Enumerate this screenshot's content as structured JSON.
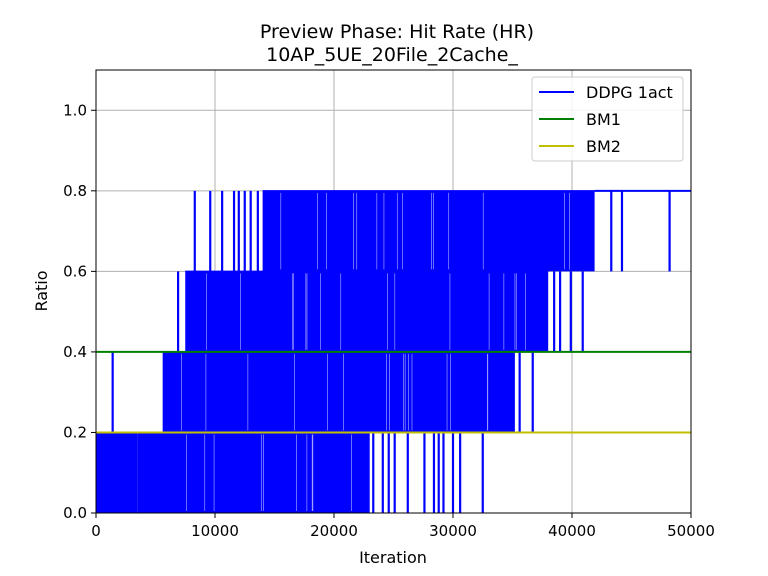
{
  "chart_data": {
    "type": "line",
    "title": "Preview Phase: Hit Rate (HR)",
    "subtitle": "10AP_5UE_20File_2Cache_",
    "xlabel": "Iteration",
    "ylabel": "Ratio",
    "xlim": [
      0,
      50000
    ],
    "ylim": [
      0,
      1.1
    ],
    "xticks": [
      0,
      10000,
      20000,
      30000,
      40000,
      50000
    ],
    "xtick_labels": [
      "0",
      "10000",
      "20000",
      "30000",
      "40000",
      "50000"
    ],
    "yticks": [
      0.0,
      0.2,
      0.4,
      0.6,
      0.8,
      1.0
    ],
    "ytick_labels": [
      "0.0",
      "0.2",
      "0.4",
      "0.6",
      "0.8",
      "1.0"
    ],
    "grid": true,
    "legend_position": "top-right",
    "series": [
      {
        "name": "DDPG 1act",
        "color": "#0000ff",
        "style": "oscillating",
        "bands": [
          {
            "x": [
              0,
              3500
            ],
            "low": 0.0,
            "high": 0.2
          },
          {
            "x": [
              3500,
              23000
            ],
            "low": 0.0,
            "high": 0.2
          },
          {
            "x": [
              5600,
              35200
            ],
            "low": 0.2,
            "high": 0.4
          },
          {
            "x": [
              7500,
              38000
            ],
            "low": 0.4,
            "high": 0.6
          },
          {
            "x": [
              14000,
              41900
            ],
            "low": 0.6,
            "high": 0.8
          }
        ],
        "spikes": [
          {
            "x": 1400,
            "low": 0.2,
            "high": 0.4
          },
          {
            "x": 6900,
            "low": 0.4,
            "high": 0.6
          },
          {
            "x": 8300,
            "low": 0.6,
            "high": 0.8
          },
          {
            "x": 9600,
            "low": 0.6,
            "high": 0.8
          },
          {
            "x": 10600,
            "low": 0.6,
            "high": 0.8
          },
          {
            "x": 11600,
            "low": 0.6,
            "high": 0.8
          },
          {
            "x": 12000,
            "low": 0.6,
            "high": 0.8
          },
          {
            "x": 12500,
            "low": 0.6,
            "high": 0.8
          },
          {
            "x": 13000,
            "low": 0.6,
            "high": 0.8
          },
          {
            "x": 13600,
            "low": 0.6,
            "high": 0.8
          },
          {
            "x": 23300,
            "low": 0.0,
            "high": 0.2
          },
          {
            "x": 24100,
            "low": 0.0,
            "high": 0.2
          },
          {
            "x": 24600,
            "low": 0.0,
            "high": 0.2
          },
          {
            "x": 25100,
            "low": 0.0,
            "high": 0.2
          },
          {
            "x": 26200,
            "low": 0.0,
            "high": 0.2
          },
          {
            "x": 27600,
            "low": 0.0,
            "high": 0.2
          },
          {
            "x": 28400,
            "low": 0.0,
            "high": 0.2
          },
          {
            "x": 28800,
            "low": 0.0,
            "high": 0.2
          },
          {
            "x": 29200,
            "low": 0.0,
            "high": 0.2
          },
          {
            "x": 30000,
            "low": 0.0,
            "high": 0.2
          },
          {
            "x": 30600,
            "low": 0.0,
            "high": 0.2
          },
          {
            "x": 32500,
            "low": 0.0,
            "high": 0.2
          },
          {
            "x": 35600,
            "low": 0.2,
            "high": 0.4
          },
          {
            "x": 36700,
            "low": 0.2,
            "high": 0.4
          },
          {
            "x": 38500,
            "low": 0.4,
            "high": 0.6
          },
          {
            "x": 39000,
            "low": 0.4,
            "high": 0.6
          },
          {
            "x": 39900,
            "low": 0.4,
            "high": 0.6
          },
          {
            "x": 40900,
            "low": 0.4,
            "high": 0.6
          },
          {
            "x": 43300,
            "low": 0.6,
            "high": 0.8
          },
          {
            "x": 44200,
            "low": 0.6,
            "high": 0.8
          },
          {
            "x": 48200,
            "low": 0.6,
            "high": 0.8
          }
        ],
        "plateaus": [
          {
            "x": [
              41900,
              50000
            ],
            "y": 0.8
          }
        ]
      },
      {
        "name": "BM1",
        "color": "#008000",
        "style": "constant",
        "x": [
          0,
          50000
        ],
        "y": [
          0.4,
          0.4
        ]
      },
      {
        "name": "BM2",
        "color": "#bfbf00",
        "style": "constant",
        "x": [
          0,
          50000
        ],
        "y": [
          0.2,
          0.2
        ]
      }
    ]
  }
}
